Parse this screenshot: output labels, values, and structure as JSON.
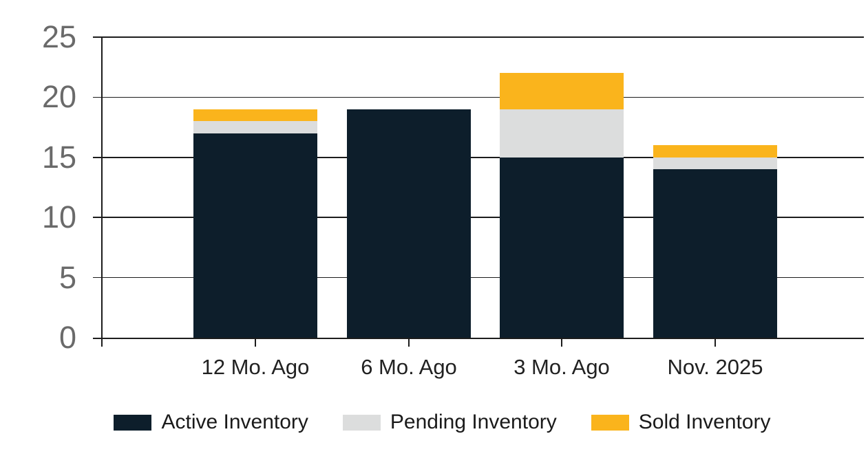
{
  "colors": {
    "active": "#0d1e2b",
    "pending": "#dcdddd",
    "sold": "#fab41c",
    "axis_line": "#1c1c1c",
    "y_label_text": "#6a6a6a",
    "x_label_text": "#212121",
    "legend_text": "#1a1a1a",
    "background": "#ffffff"
  },
  "chart_data": {
    "type": "bar",
    "stacked": true,
    "title": "",
    "xlabel": "",
    "ylabel": "",
    "categories": [
      "12 Mo. Ago",
      "6 Mo. Ago",
      "3 Mo. Ago",
      "Nov. 2025"
    ],
    "series": [
      {
        "name": "Active Inventory",
        "color_key": "active",
        "values": [
          17,
          19,
          15,
          14
        ]
      },
      {
        "name": "Pending Inventory",
        "color_key": "pending",
        "values": [
          1,
          0,
          4,
          1
        ]
      },
      {
        "name": "Sold Inventory",
        "color_key": "sold",
        "values": [
          1,
          0,
          3,
          1
        ]
      }
    ],
    "totals": [
      19,
      19,
      22,
      16
    ],
    "ylim": [
      0,
      25
    ],
    "y_ticks": [
      0,
      5,
      10,
      15,
      20,
      25
    ],
    "grid": true,
    "legend_position": "bottom"
  }
}
